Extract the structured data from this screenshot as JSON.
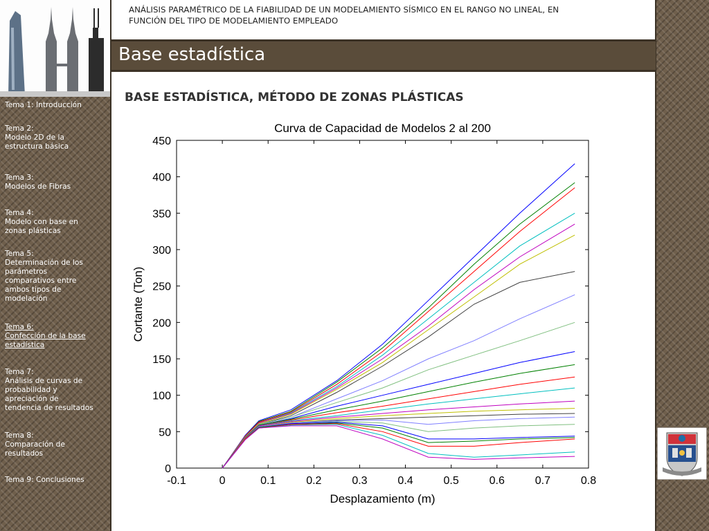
{
  "header": {
    "title_line1": "ANÁLISIS PARAMÉTRICO DE LA FIABILIDAD DE UN MODELAMIENTO SÍSMICO EN EL RANGO NO LINEAL, EN",
    "title_line2": "FUNCIÓN DEL TIPO DE MODELAMIENTO EMPLEADO"
  },
  "page_title": "Base estadística",
  "section_heading": "BASE ESTADÍSTICA, MÉTODO DE ZONAS PLÁSTICAS",
  "nav": {
    "items": [
      {
        "lines": [
          "Tema 1: Introducción"
        ],
        "active": false
      },
      {
        "lines": [
          "Tema 2:",
          "Modelo 2D de la",
          "estructura básica"
        ],
        "active": false
      },
      {
        "lines": [
          "Tema 3:",
          "Modelos de Fibras"
        ],
        "active": false
      },
      {
        "lines": [
          "Tema 4:",
          "Modelo con base en",
          "zonas plásticas"
        ],
        "active": false
      },
      {
        "lines": [
          "Tema 5:",
          "Determinación de los",
          "parámetros",
          "comparativos entre",
          "ambos tipos de",
          "modelación"
        ],
        "active": false
      },
      {
        "lines": [
          "Tema 6:",
          "Confección de la base",
          "estadística"
        ],
        "active": true
      },
      {
        "lines": [
          "Tema 7:",
          "Análisis de curvas de",
          "probabilidad y",
          "apreciación de",
          "tendencia de resultados"
        ],
        "active": false
      },
      {
        "lines": [
          "Tema 8:",
          "Comparación de",
          "resultados"
        ],
        "active": false
      },
      {
        "lines": [
          "Tema 9: Conclusiones"
        ],
        "active": false
      }
    ]
  },
  "colors": {
    "panel": "#6f5f4c",
    "title_band": "#5a4c3a"
  },
  "chart_data": {
    "type": "line",
    "title": "Curva de Capacidad de Modelos 2 al 200",
    "xlabel": "Desplazamiento (m)",
    "ylabel": "Cortante (Ton)",
    "xlim": [
      -0.1,
      0.8
    ],
    "ylim": [
      0,
      450
    ],
    "xticks": [
      -0.1,
      0,
      0.1,
      0.2,
      0.3,
      0.4,
      0.5,
      0.6,
      0.7,
      0.8
    ],
    "yticks": [
      0,
      50,
      100,
      150,
      200,
      250,
      300,
      350,
      400,
      450
    ],
    "grid": false,
    "legend": "none",
    "series_colors": [
      "#0000ff",
      "#008000",
      "#ff0000",
      "#00bfbf",
      "#bf00bf",
      "#bfbf00",
      "#404040",
      "#7f7fff",
      "#7fbf7f"
    ],
    "series": [
      {
        "x": [
          0,
          0.05,
          0.08,
          0.15,
          0.25,
          0.35,
          0.45,
          0.55,
          0.65,
          0.77
        ],
        "y": [
          0,
          45,
          65,
          80,
          120,
          170,
          230,
          290,
          350,
          418
        ]
      },
      {
        "x": [
          0,
          0.05,
          0.08,
          0.15,
          0.25,
          0.35,
          0.45,
          0.55,
          0.65,
          0.77
        ],
        "y": [
          0,
          44,
          64,
          78,
          118,
          165,
          220,
          280,
          335,
          392
        ]
      },
      {
        "x": [
          0,
          0.05,
          0.08,
          0.15,
          0.25,
          0.35,
          0.45,
          0.55,
          0.65,
          0.77
        ],
        "y": [
          0,
          44,
          63,
          77,
          115,
          160,
          215,
          270,
          325,
          385
        ]
      },
      {
        "x": [
          0,
          0.05,
          0.08,
          0.15,
          0.25,
          0.35,
          0.45,
          0.55,
          0.65,
          0.77
        ],
        "y": [
          0,
          43,
          62,
          76,
          112,
          155,
          205,
          255,
          305,
          350
        ]
      },
      {
        "x": [
          0,
          0.05,
          0.08,
          0.15,
          0.25,
          0.35,
          0.45,
          0.55,
          0.65,
          0.77
        ],
        "y": [
          0,
          43,
          62,
          75,
          110,
          150,
          195,
          245,
          290,
          335
        ]
      },
      {
        "x": [
          0,
          0.05,
          0.08,
          0.15,
          0.25,
          0.35,
          0.45,
          0.55,
          0.65,
          0.77
        ],
        "y": [
          0,
          43,
          61,
          74,
          108,
          145,
          190,
          235,
          280,
          320
        ]
      },
      {
        "x": [
          0,
          0.05,
          0.08,
          0.15,
          0.25,
          0.35,
          0.45,
          0.55,
          0.65,
          0.77
        ],
        "y": [
          0,
          42,
          60,
          72,
          104,
          140,
          180,
          225,
          255,
          270
        ]
      },
      {
        "x": [
          0,
          0.05,
          0.08,
          0.15,
          0.25,
          0.35,
          0.45,
          0.55,
          0.65,
          0.77
        ],
        "y": [
          0,
          42,
          60,
          70,
          95,
          120,
          150,
          175,
          205,
          238
        ]
      },
      {
        "x": [
          0,
          0.05,
          0.08,
          0.15,
          0.25,
          0.35,
          0.45,
          0.55,
          0.65,
          0.77
        ],
        "y": [
          0,
          42,
          60,
          70,
          90,
          110,
          135,
          155,
          175,
          200
        ]
      },
      {
        "x": [
          0,
          0.05,
          0.08,
          0.15,
          0.25,
          0.35,
          0.45,
          0.55,
          0.65,
          0.77
        ],
        "y": [
          0,
          42,
          59,
          68,
          85,
          100,
          115,
          130,
          145,
          160
        ]
      },
      {
        "x": [
          0,
          0.05,
          0.08,
          0.15,
          0.25,
          0.35,
          0.45,
          0.55,
          0.65,
          0.77
        ],
        "y": [
          0,
          41,
          59,
          67,
          80,
          92,
          105,
          118,
          130,
          142
        ]
      },
      {
        "x": [
          0,
          0.05,
          0.08,
          0.15,
          0.25,
          0.35,
          0.45,
          0.55,
          0.65,
          0.77
        ],
        "y": [
          0,
          41,
          58,
          66,
          76,
          85,
          95,
          105,
          115,
          125
        ]
      },
      {
        "x": [
          0,
          0.05,
          0.08,
          0.15,
          0.25,
          0.35,
          0.45,
          0.55,
          0.65,
          0.77
        ],
        "y": [
          0,
          41,
          58,
          65,
          72,
          80,
          88,
          95,
          102,
          110
        ]
      },
      {
        "x": [
          0,
          0.05,
          0.08,
          0.15,
          0.25,
          0.35,
          0.45,
          0.55,
          0.65,
          0.77
        ],
        "y": [
          0,
          41,
          58,
          64,
          70,
          75,
          80,
          84,
          88,
          92
        ]
      },
      {
        "x": [
          0,
          0.05,
          0.08,
          0.15,
          0.25,
          0.35,
          0.45,
          0.55,
          0.65,
          0.77
        ],
        "y": [
          0,
          41,
          57,
          63,
          68,
          72,
          75,
          78,
          80,
          82
        ]
      },
      {
        "x": [
          0,
          0.05,
          0.08,
          0.15,
          0.25,
          0.35,
          0.45,
          0.55,
          0.65,
          0.77
        ],
        "y": [
          0,
          40,
          57,
          62,
          66,
          68,
          70,
          72,
          74,
          75
        ]
      },
      {
        "x": [
          0,
          0.05,
          0.08,
          0.15,
          0.25,
          0.35,
          0.45,
          0.55,
          0.65,
          0.77
        ],
        "y": [
          0,
          40,
          57,
          62,
          65,
          66,
          60,
          65,
          68,
          70
        ]
      },
      {
        "x": [
          0,
          0.05,
          0.08,
          0.15,
          0.25,
          0.35,
          0.45,
          0.55,
          0.65,
          0.77
        ],
        "y": [
          0,
          40,
          56,
          61,
          64,
          62,
          50,
          55,
          58,
          60
        ]
      },
      {
        "x": [
          0,
          0.05,
          0.08,
          0.15,
          0.25,
          0.35,
          0.45,
          0.55,
          0.65,
          0.77
        ],
        "y": [
          0,
          40,
          56,
          61,
          63,
          58,
          40,
          40,
          42,
          44
        ]
      },
      {
        "x": [
          0,
          0.05,
          0.08,
          0.15,
          0.25,
          0.35,
          0.45,
          0.55,
          0.65,
          0.77
        ],
        "y": [
          0,
          40,
          56,
          60,
          62,
          55,
          35,
          37,
          40,
          42
        ]
      },
      {
        "x": [
          0,
          0.05,
          0.08,
          0.15,
          0.25,
          0.35,
          0.45,
          0.55,
          0.65,
          0.77
        ],
        "y": [
          0,
          40,
          55,
          60,
          61,
          50,
          30,
          30,
          35,
          40
        ]
      },
      {
        "x": [
          0,
          0.05,
          0.08,
          0.15,
          0.25,
          0.35,
          0.45,
          0.55,
          0.65,
          0.77
        ],
        "y": [
          0,
          39,
          55,
          59,
          60,
          45,
          20,
          15,
          18,
          22
        ]
      },
      {
        "x": [
          0,
          0.05,
          0.08,
          0.15,
          0.25,
          0.35,
          0.45,
          0.55,
          0.65,
          0.77
        ],
        "y": [
          0,
          39,
          55,
          58,
          58,
          40,
          15,
          12,
          14,
          16
        ]
      }
    ]
  }
}
